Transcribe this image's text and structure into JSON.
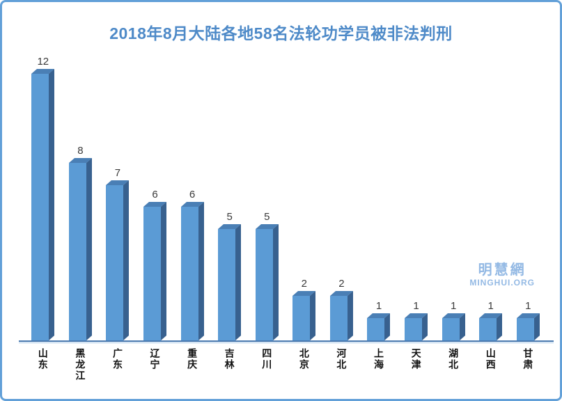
{
  "chart_data": {
    "type": "bar",
    "title": "2018年8月大陆各地58名法轮功学员被非法判刑",
    "categories": [
      "山东",
      "黑龙江",
      "广东",
      "辽宁",
      "重庆",
      "吉林",
      "四川",
      "北京",
      "河北",
      "上海",
      "天津",
      "湖北",
      "山西",
      "甘肃"
    ],
    "values": [
      12,
      8,
      7,
      6,
      6,
      5,
      5,
      2,
      2,
      1,
      1,
      1,
      1,
      1
    ],
    "total": 58,
    "xlabel": "",
    "ylabel": "",
    "ylim": [
      0,
      12
    ],
    "grid": false,
    "legend": "none",
    "data_labels_shown": true,
    "bar_style": "3d",
    "colors": {
      "bar_front": "#5B9BD5",
      "bar_top": "#4A7FB5",
      "bar_side": "#38618F",
      "title": "#4E8AC8",
      "axis_line_dark": "#4576AD",
      "axis_line_light": "#A9C7E7",
      "value_label": "#3a3a3a",
      "category_label": "#111111",
      "frame_border": "#62A0D8"
    }
  },
  "watermark": {
    "cjk": "明慧網",
    "latin": "MINGHUI.ORG",
    "color": "#93B9E4"
  }
}
